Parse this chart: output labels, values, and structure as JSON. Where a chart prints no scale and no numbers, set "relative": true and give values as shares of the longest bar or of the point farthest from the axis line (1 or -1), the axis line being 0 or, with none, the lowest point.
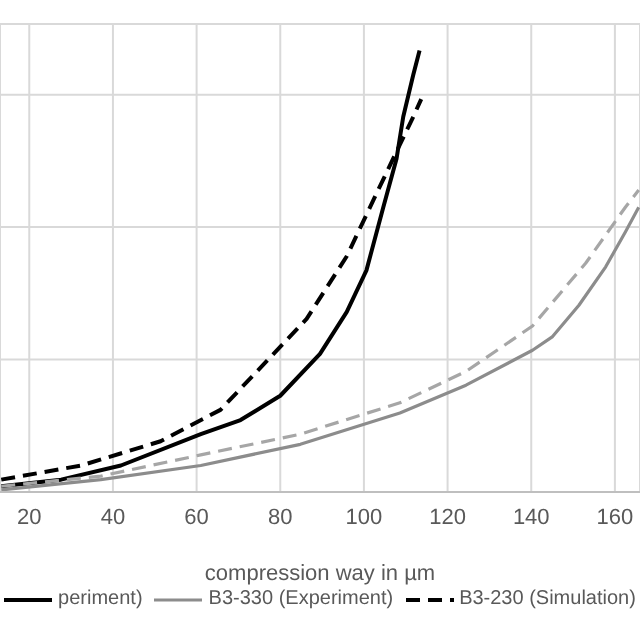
{
  "chart_data": {
    "type": "line",
    "xlabel": "compression way in µm",
    "relative": true,
    "xlim": [
      13,
      166
    ],
    "xticks": [
      20,
      40,
      60,
      80,
      100,
      120,
      140,
      160
    ],
    "grid": true,
    "legend": "bottom",
    "marker": "none",
    "series": [
      {
        "name": "periment)",
        "color": "#000000",
        "line_style": "solid",
        "x": [
          13.3,
          27.6,
          41.9,
          61.0,
          70.5,
          80.0,
          89.5,
          95.9,
          100.6,
          104.6,
          107.8,
          109.4,
          111.8,
          113.3
        ],
        "values": [
          0.013,
          0.028,
          0.06,
          0.131,
          0.163,
          0.218,
          0.313,
          0.408,
          0.502,
          0.644,
          0.755,
          0.85,
          0.945,
          1.0
        ]
      },
      {
        "name": "B3-330 (Experiment)",
        "color": "#8c8c8c",
        "line_style": "solid",
        "x": [
          13.3,
          37.1,
          61.0,
          84.8,
          108.6,
          124.4,
          140.3,
          145.1,
          151.4,
          157.8,
          162.5,
          165.7
        ],
        "values": [
          0.005,
          0.028,
          0.06,
          0.108,
          0.179,
          0.242,
          0.321,
          0.352,
          0.423,
          0.51,
          0.589,
          0.645
        ]
      },
      {
        "name": "B3-230 (Simulation)",
        "color": "#000000",
        "line_style": "dashed",
        "x": [
          13.3,
          32.4,
          51.4,
          65.7,
          76.8,
          86.3,
          95.9,
          102.2,
          107.8,
          111.8,
          113.7
        ],
        "values": [
          0.028,
          0.06,
          0.115,
          0.186,
          0.297,
          0.392,
          0.534,
          0.66,
          0.771,
          0.85,
          0.89
        ]
      },
      {
        "color": "#a6a6a6",
        "line_style": "dashed",
        "x": [
          13.3,
          37.1,
          61.0,
          84.8,
          108.6,
          124.4,
          140.3,
          153.0,
          162.5,
          165.7
        ],
        "values": [
          0.013,
          0.036,
          0.084,
          0.131,
          0.202,
          0.273,
          0.376,
          0.518,
          0.645,
          0.684
        ]
      }
    ]
  }
}
